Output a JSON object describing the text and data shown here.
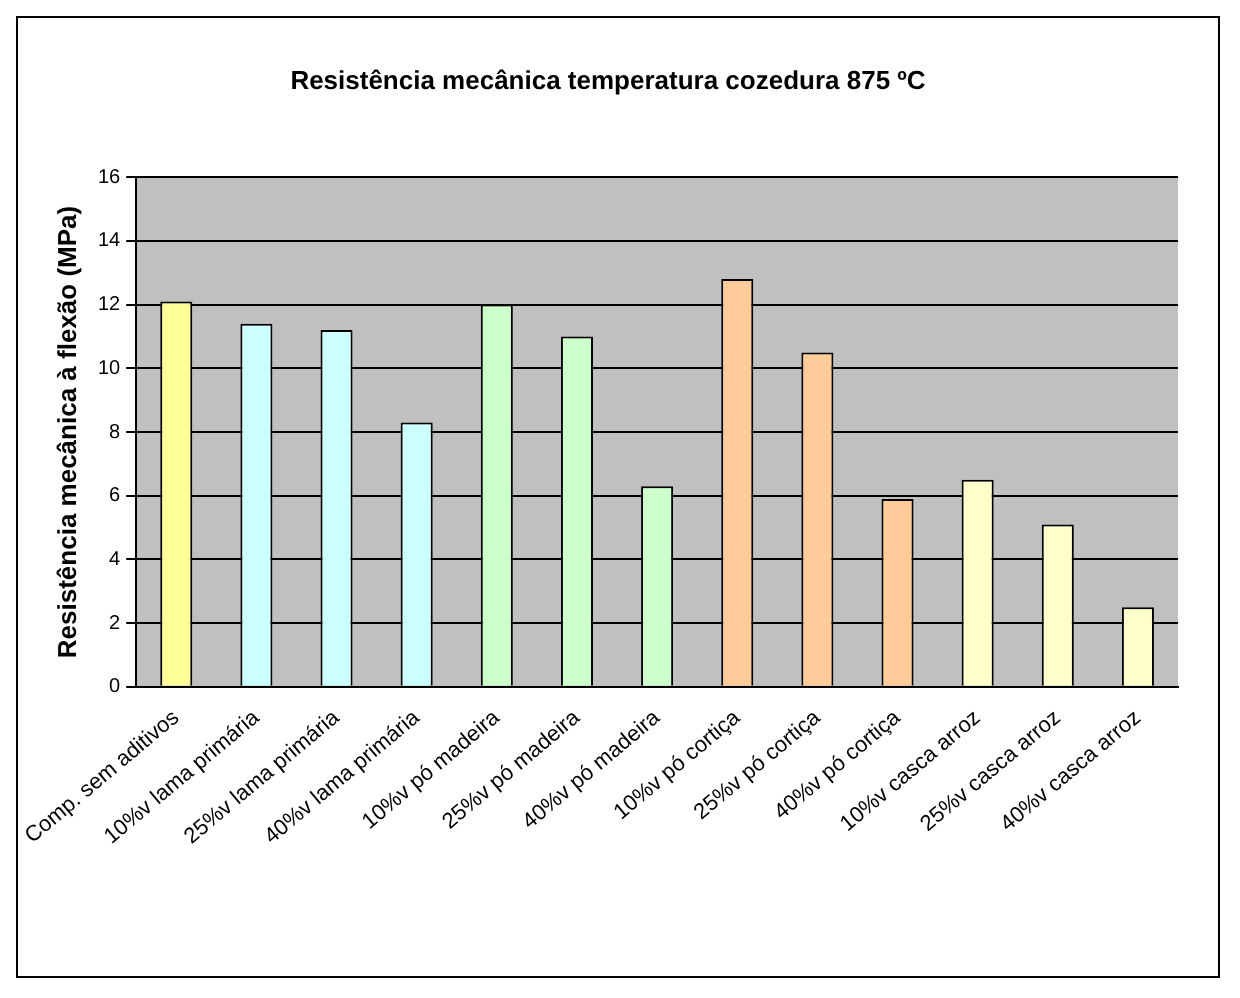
{
  "chart_data": {
    "type": "bar",
    "title": "Resistência mecânica temperatura cozedura 875 ºC",
    "ylabel": "Resistência mecânica à flexão (MPa)",
    "categories": [
      "Comp. sem aditivos",
      "10%v lama primária",
      "25%v lama primária",
      "40%v lama primária",
      "10%v pó madeira",
      "25%v pó madeira",
      "40%v pó madeira",
      "10%v pó cortiça",
      "25%v pó cortiça",
      "40%v pó cortiça",
      "10%v casca arroz",
      "25%v casca arroz",
      "40%v casca arroz"
    ],
    "values": [
      12.1,
      11.4,
      11.2,
      8.3,
      12.0,
      11.0,
      6.3,
      12.8,
      10.5,
      5.9,
      6.5,
      5.1,
      2.5
    ],
    "colors": [
      "#ffff99",
      "#ccffff",
      "#ccffff",
      "#ccffff",
      "#ccffcc",
      "#ccffcc",
      "#ccffcc",
      "#ffcc99",
      "#ffcc99",
      "#ffcc99",
      "#ffffcc",
      "#ffffcc",
      "#ffffcc"
    ],
    "ylim": [
      0,
      16
    ],
    "yticks": [
      0,
      2,
      4,
      6,
      8,
      10,
      12,
      14,
      16
    ],
    "grid": "y",
    "legend": false
  }
}
